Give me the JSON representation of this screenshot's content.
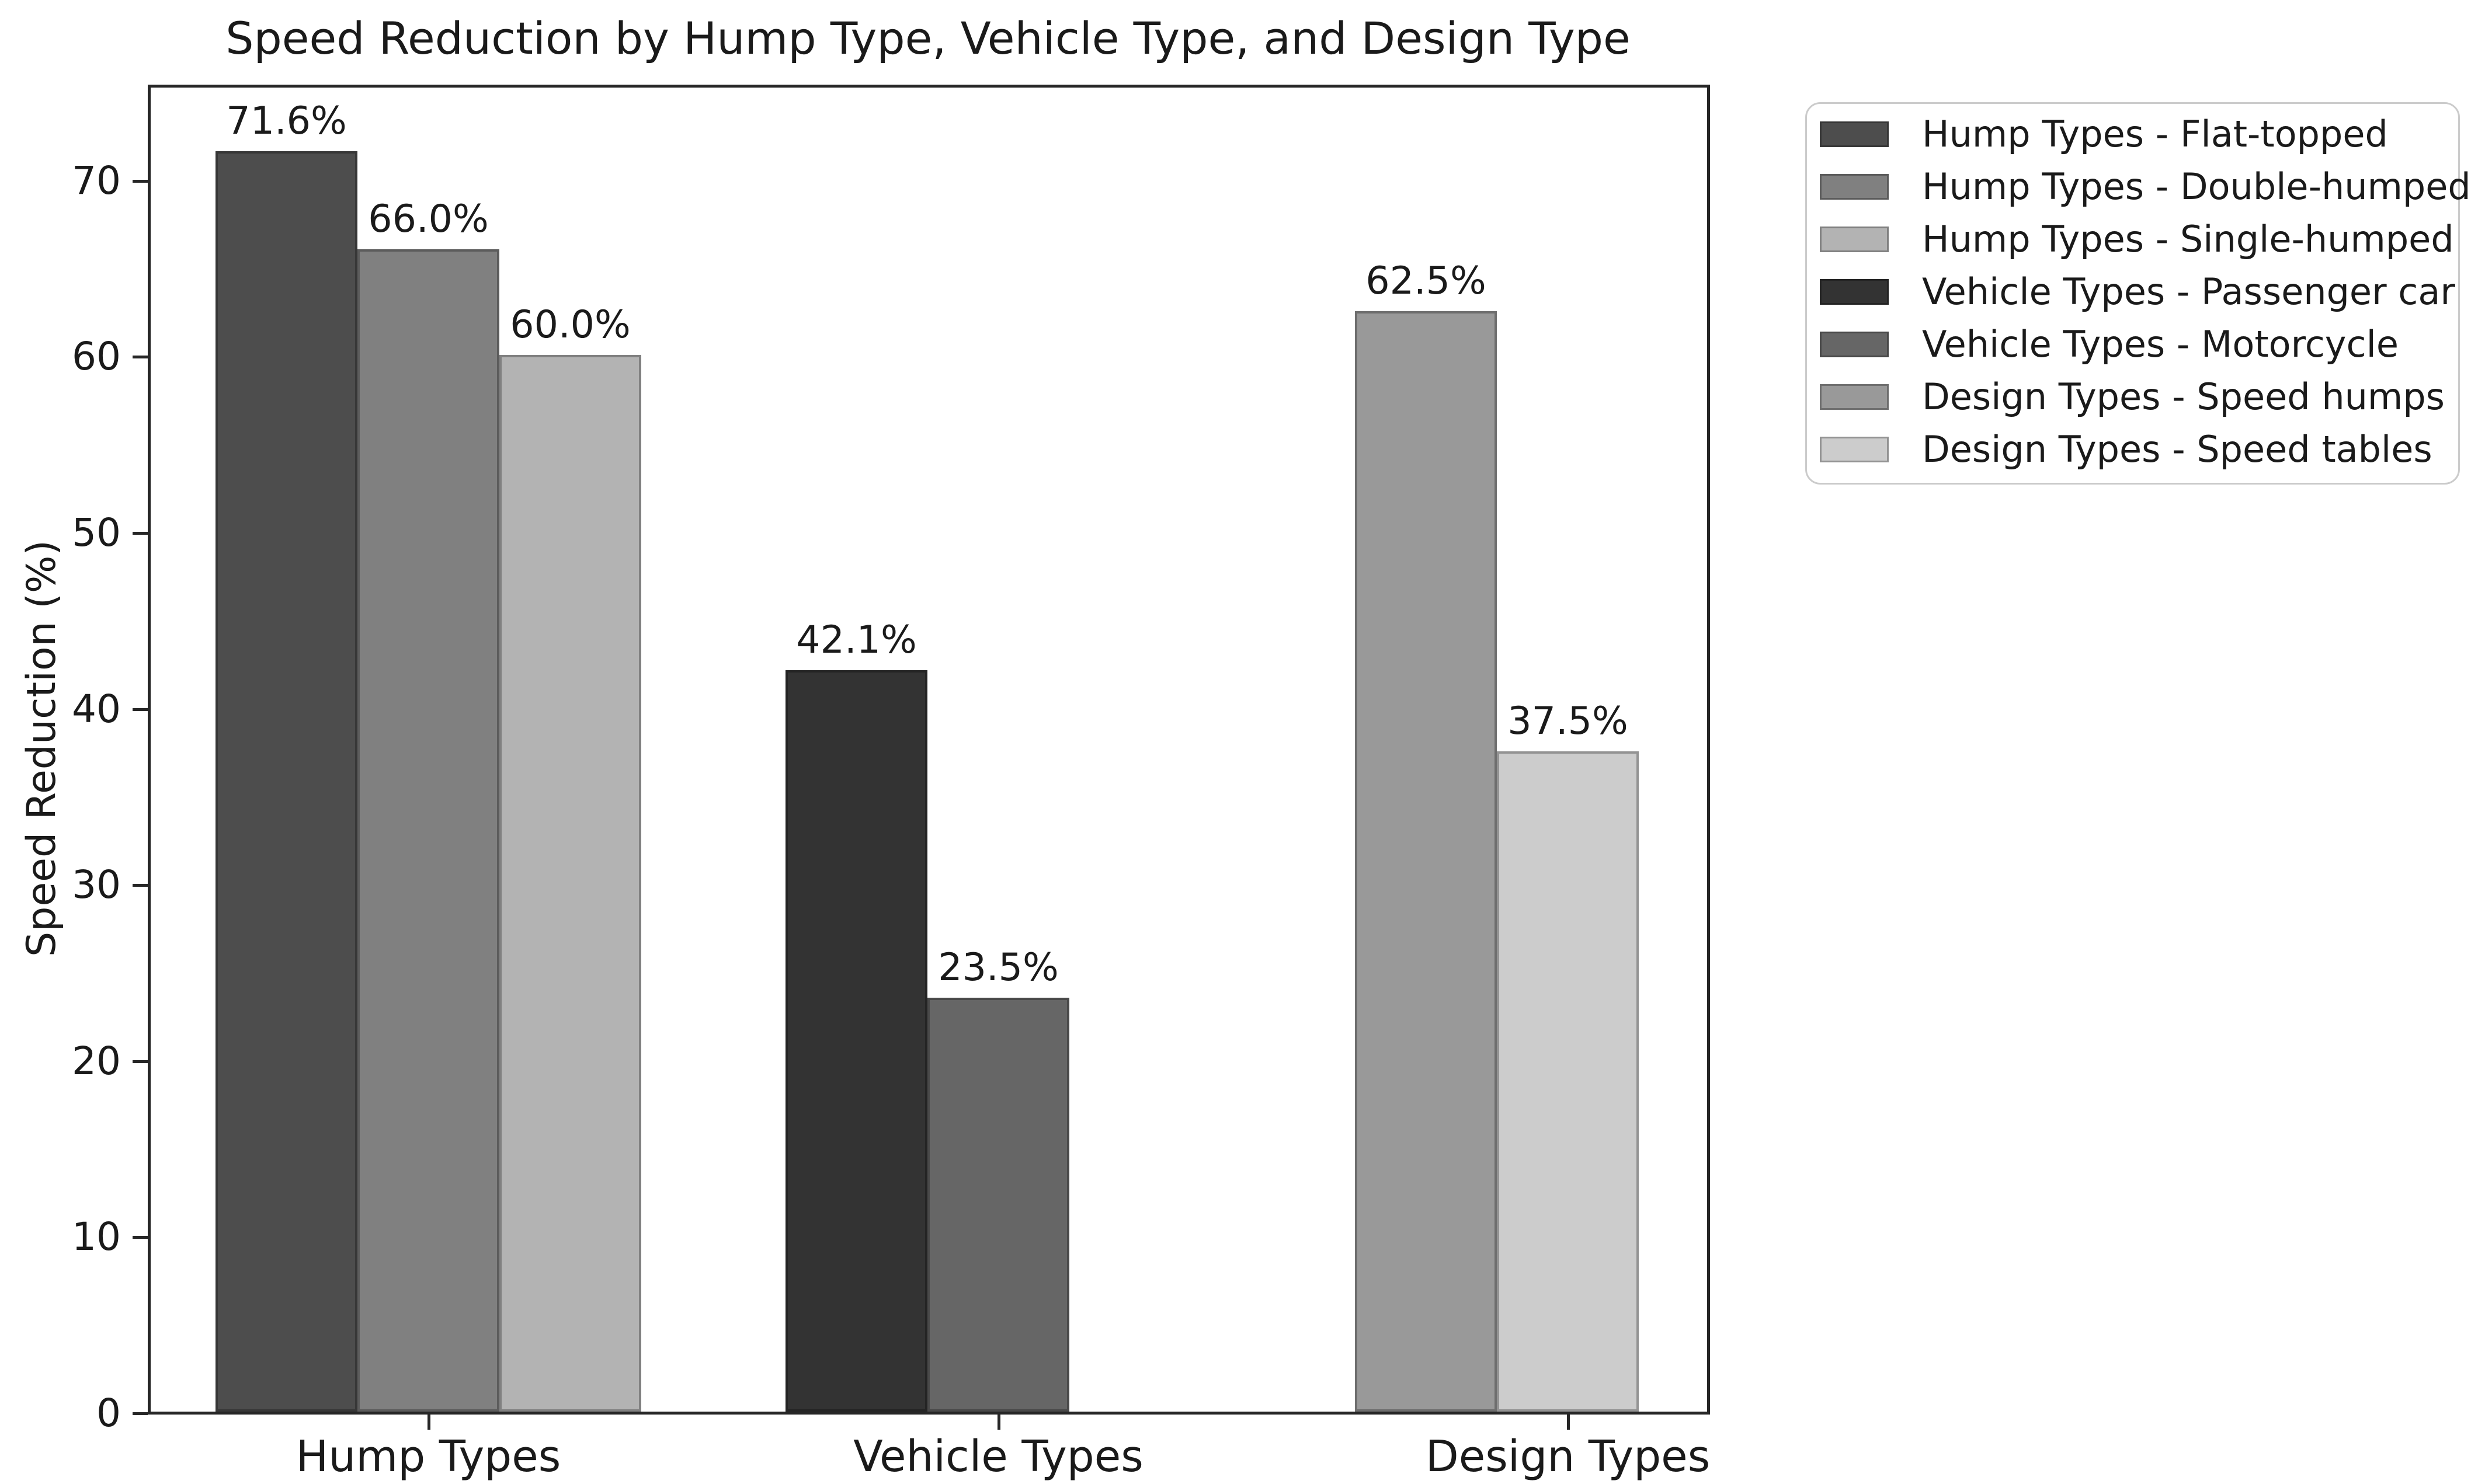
{
  "figure": {
    "background": "#ffffff",
    "text_color": "#1a1a1a",
    "axis_color": "#262626"
  },
  "chart_data": {
    "type": "bar",
    "title": "Speed Reduction by Hump Type, Vehicle Type, and Design Type",
    "xlabel": "",
    "ylabel": "Speed Reduction (%)",
    "ylim": [
      0,
      75.2
    ],
    "grid": false,
    "legend_position": "outside-upper-right",
    "y_ticks": [
      0,
      10,
      20,
      30,
      40,
      50,
      60,
      70
    ],
    "y_tick_labels": [
      "0",
      "10",
      "20",
      "30",
      "40",
      "50",
      "60",
      "70"
    ],
    "categories": [
      "Hump Types",
      "Vehicle Types",
      "Design Types"
    ],
    "groups": [
      {
        "category": "Hump Types",
        "bars": [
          {
            "series": "Hump Types - Flat-topped",
            "value": 71.6,
            "label": "71.6%",
            "color": "#4d4d4d"
          },
          {
            "series": "Hump Types - Double-humped",
            "value": 66.0,
            "label": "66.0%",
            "color": "#808080"
          },
          {
            "series": "Hump Types - Single-humped",
            "value": 60.0,
            "label": "60.0%",
            "color": "#b3b3b3"
          }
        ]
      },
      {
        "category": "Vehicle Types",
        "bars": [
          {
            "series": "Vehicle Types - Passenger car",
            "value": 42.1,
            "label": "42.1%",
            "color": "#333333"
          },
          {
            "series": "Vehicle Types - Motorcycle",
            "value": 23.5,
            "label": "23.5%",
            "color": "#666666"
          }
        ]
      },
      {
        "category": "Design Types",
        "bars": [
          {
            "series": "Design Types - Speed humps",
            "value": 62.5,
            "label": "62.5%",
            "color": "#999999"
          },
          {
            "series": "Design Types - Speed tables",
            "value": 37.5,
            "label": "37.5%",
            "color": "#cccccc"
          }
        ]
      }
    ],
    "legend": {
      "entries": [
        {
          "label": "Hump Types - Flat-topped",
          "color": "#4d4d4d"
        },
        {
          "label": "Hump Types - Double-humped",
          "color": "#808080"
        },
        {
          "label": "Hump Types - Single-humped",
          "color": "#b3b3b3"
        },
        {
          "label": "Vehicle Types - Passenger car",
          "color": "#333333"
        },
        {
          "label": "Vehicle Types - Motorcycle",
          "color": "#666666"
        },
        {
          "label": "Design Types - Speed humps",
          "color": "#999999"
        },
        {
          "label": "Design Types - Speed tables",
          "color": "#cccccc"
        }
      ]
    }
  }
}
